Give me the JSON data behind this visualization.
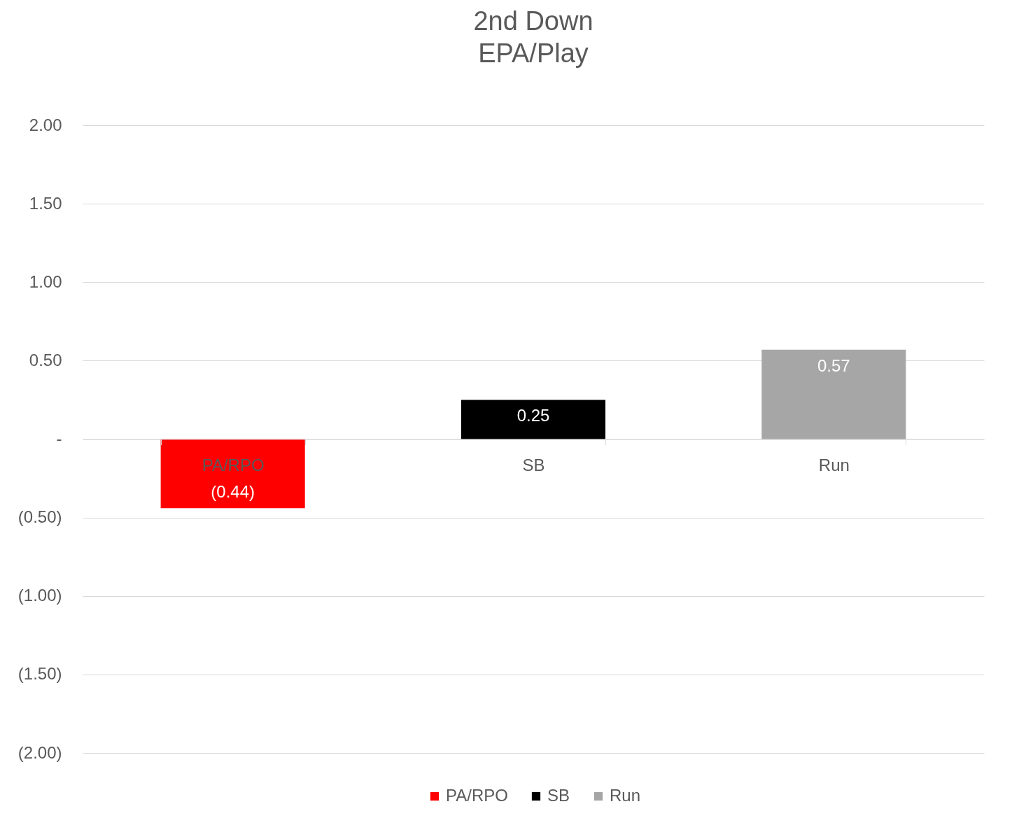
{
  "chart_data": {
    "type": "bar",
    "title": [
      "2nd Down",
      "EPA/Play"
    ],
    "categories": [
      "PA/RPO",
      "SB",
      "Run"
    ],
    "series": [
      {
        "name": "PA/RPO",
        "color": "#ff0000",
        "values": [
          -0.44,
          null,
          null
        ],
        "value_labels": [
          "(0.44)",
          null,
          null
        ]
      },
      {
        "name": "SB",
        "color": "#000000",
        "values": [
          null,
          0.25,
          null
        ],
        "value_labels": [
          null,
          "0.25",
          null
        ]
      },
      {
        "name": "Run",
        "color": "#a6a6a6",
        "values": [
          null,
          null,
          0.57
        ],
        "value_labels": [
          null,
          null,
          "0.57"
        ]
      }
    ],
    "ylim": [
      -2,
      2
    ],
    "yticks": [
      {
        "value": 2,
        "label": "2.00"
      },
      {
        "value": 1.5,
        "label": "1.50"
      },
      {
        "value": 1,
        "label": "1.00"
      },
      {
        "value": 0.5,
        "label": "0.50"
      },
      {
        "value": 0,
        "label": "-"
      },
      {
        "value": -0.5,
        "label": "(0.50)"
      },
      {
        "value": -1,
        "label": "(1.00)"
      },
      {
        "value": -1.5,
        "label": "(1.50)"
      },
      {
        "value": -2,
        "label": "(2.00)"
      }
    ],
    "grid": "y",
    "legend": "bottom"
  }
}
